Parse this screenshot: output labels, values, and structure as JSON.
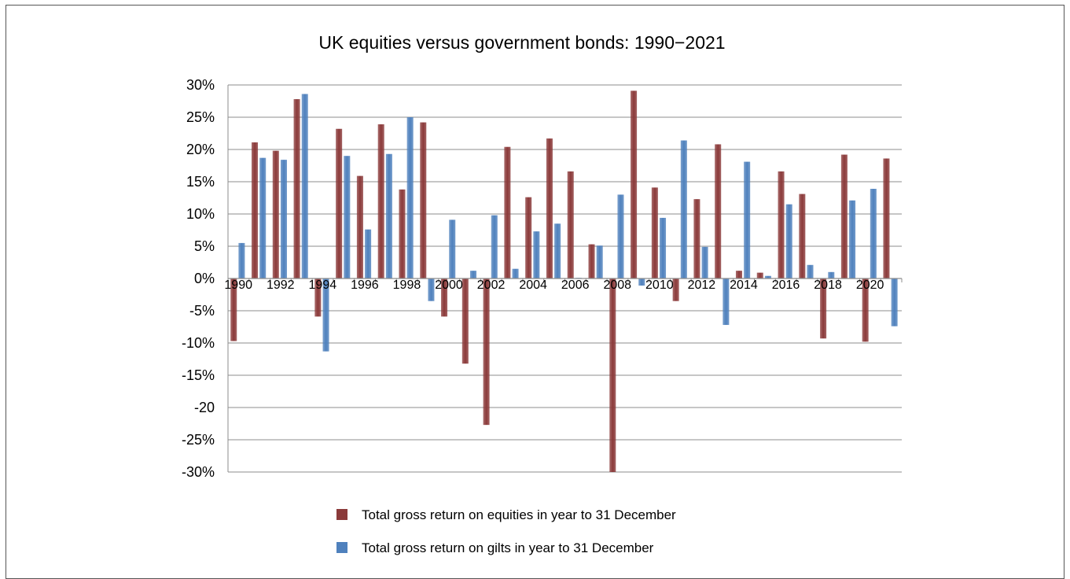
{
  "chart_data": {
    "type": "bar",
    "title": "UK equities versus government bonds: 1990−2021",
    "x": [
      1990,
      1991,
      1992,
      1993,
      1994,
      1995,
      1996,
      1997,
      1998,
      1999,
      2000,
      2001,
      2002,
      2003,
      2004,
      2005,
      2006,
      2007,
      2008,
      2009,
      2010,
      2011,
      2012,
      2013,
      2014,
      2015,
      2016,
      2017,
      2018,
      2019,
      2020,
      2021
    ],
    "x_tick_labels": [
      "1990",
      "1992",
      "1994",
      "1996",
      "1998",
      "2000",
      "2002",
      "2004",
      "2006",
      "2008",
      "2010",
      "2012",
      "2014",
      "2016",
      "2018",
      "2020"
    ],
    "y_tick_labels": [
      "30%",
      "25%",
      "20%",
      "15%",
      "10%",
      "5%",
      "0%",
      "-5%",
      "-10%",
      "-15%",
      "-20",
      "-25%",
      "-30%"
    ],
    "ylim": [
      -30,
      30
    ],
    "grid": true,
    "legend_position": "bottom",
    "series": [
      {
        "name": "Total gross return on equities in year to 31 December",
        "color": "#8B3A3A",
        "values": [
          -9.7,
          21.1,
          19.8,
          27.8,
          -5.9,
          23.2,
          15.9,
          23.9,
          13.8,
          24.2,
          -5.9,
          -13.2,
          -22.7,
          20.4,
          12.6,
          21.7,
          16.6,
          5.3,
          -30.0,
          29.1,
          14.1,
          -3.5,
          12.3,
          20.8,
          1.2,
          0.9,
          16.6,
          13.1,
          -9.3,
          19.2,
          -9.8,
          18.6
        ]
      },
      {
        "name": "Total gross return on gilts in year to 31 December",
        "color": "#4F81BD",
        "values": [
          5.5,
          18.7,
          18.4,
          28.6,
          -11.3,
          19.0,
          7.6,
          19.3,
          25.0,
          -3.5,
          9.1,
          1.2,
          9.8,
          1.5,
          7.3,
          8.5,
          0.1,
          5.1,
          13.0,
          -1.1,
          9.4,
          21.4,
          4.9,
          -7.2,
          18.1,
          0.4,
          11.5,
          2.1,
          1.0,
          12.1,
          13.9,
          -7.4
        ]
      }
    ]
  }
}
